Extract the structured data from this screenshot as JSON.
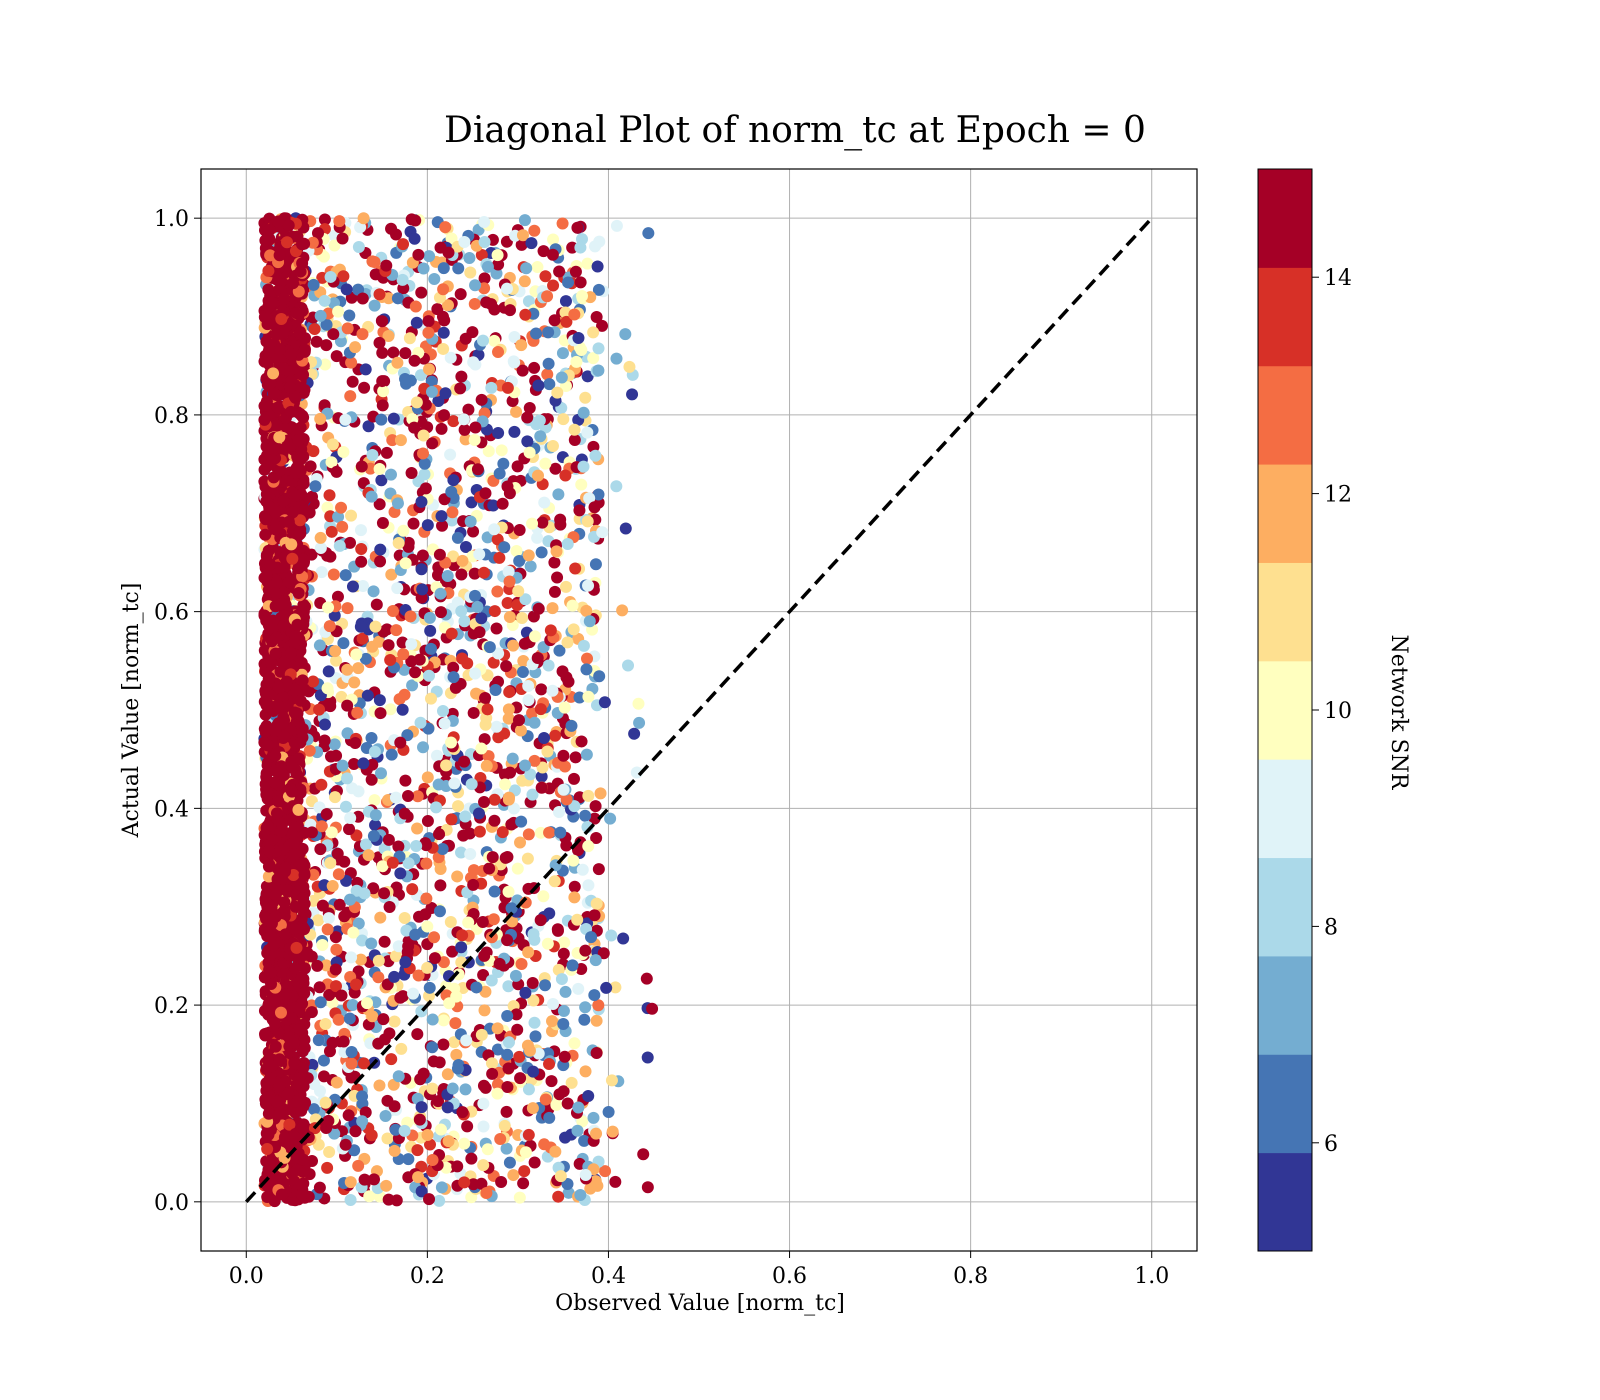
{
  "chart_data": {
    "type": "scatter",
    "title": "Diagonal Plot of norm_tc at Epoch = 0",
    "xlabel": "Observed Value [norm_tc]",
    "ylabel": "Actual Value [norm_tc]",
    "xlim": [
      -0.05,
      1.05
    ],
    "ylim": [
      -0.05,
      1.05
    ],
    "xticks": [
      "0.0",
      "0.2",
      "0.4",
      "0.6",
      "0.8",
      "1.0"
    ],
    "yticks": [
      "0.0",
      "0.2",
      "0.4",
      "0.6",
      "0.8",
      "1.0"
    ],
    "grid": true,
    "reference_line": {
      "style": "dashed",
      "color": "#000000",
      "x": [
        0,
        1
      ],
      "y": [
        0,
        1
      ]
    },
    "point_distribution": {
      "x_min": 0.02,
      "x_max": 0.45,
      "y_min": 0.0,
      "y_max": 1.0,
      "dense_band_x": [
        0.02,
        0.065
      ],
      "dense_band_snr": "high"
    },
    "colorbar": {
      "label": "Network SNR",
      "range": [
        5,
        15
      ],
      "ticks": [
        "6",
        "8",
        "10",
        "12",
        "14"
      ],
      "colors": [
        "#313695",
        "#4575b4",
        "#74add1",
        "#abd9e9",
        "#e0f3f8",
        "#ffffbf",
        "#fee090",
        "#fdae61",
        "#f46d43",
        "#d73027",
        "#a50026"
      ]
    }
  }
}
